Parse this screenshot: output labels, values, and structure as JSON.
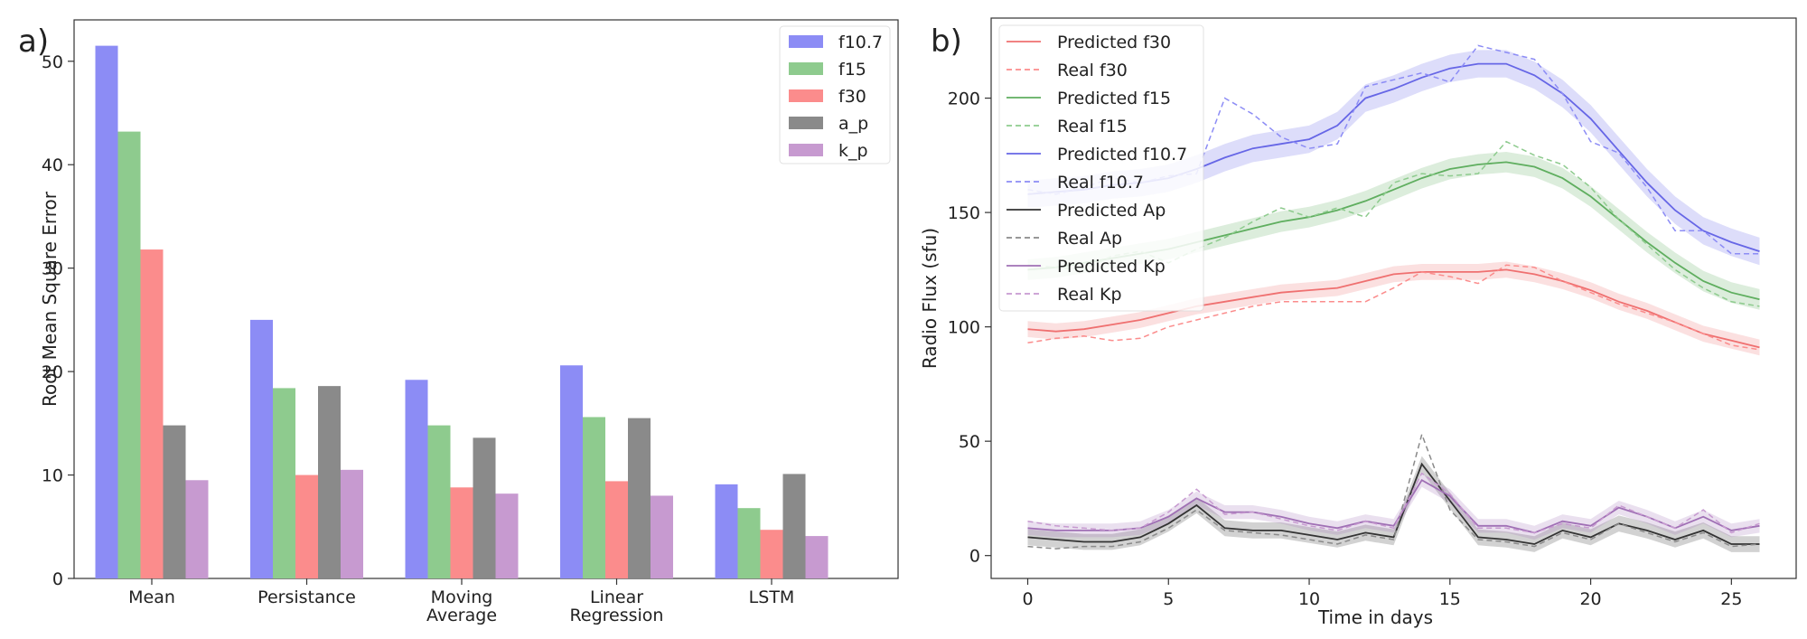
{
  "panel_labels": [
    "a)",
    "b)"
  ],
  "colors": {
    "f10_7": "#8c8cf5",
    "f15": "#8ecb8e",
    "f30": "#fb8c8c",
    "ap": "#8a8a8a",
    "kp": "#c79ad0",
    "pred_f10_7": "#6666e6",
    "pred_f15": "#5fae5f",
    "pred_f30": "#ef7070",
    "pred_ap": "#333333",
    "pred_kp": "#a070b5"
  },
  "chart_data": [
    {
      "type": "bar",
      "panel": "a)",
      "categories": [
        "Mean",
        "Persistance",
        "Moving Average",
        "Linear Regression",
        "LSTM"
      ],
      "series": [
        {
          "name": "f10.7",
          "values": [
            51.5,
            25.0,
            19.2,
            20.6,
            9.1
          ]
        },
        {
          "name": "f15",
          "values": [
            43.2,
            18.4,
            14.8,
            15.6,
            6.8
          ]
        },
        {
          "name": "f30",
          "values": [
            31.8,
            10.0,
            8.8,
            9.4,
            4.7
          ]
        },
        {
          "name": "a_p",
          "values": [
            14.8,
            18.6,
            13.6,
            15.5,
            10.1
          ]
        },
        {
          "name": "k_p",
          "values": [
            9.5,
            10.5,
            8.2,
            8.0,
            4.1
          ]
        }
      ],
      "xlabel": "",
      "ylabel": "Root Mean Square Error",
      "yticks": [
        0,
        10,
        20,
        30,
        40,
        50
      ],
      "ylim": [
        0,
        54
      ],
      "legend_position": "top-right",
      "grid": false
    },
    {
      "type": "line",
      "panel": "b)",
      "x": [
        0,
        1,
        2,
        3,
        4,
        5,
        6,
        7,
        8,
        9,
        10,
        11,
        12,
        13,
        14,
        15,
        16,
        17,
        18,
        19,
        20,
        21,
        22,
        23,
        24,
        25,
        26
      ],
      "series": [
        {
          "name": "Predicted f30",
          "style": "solid",
          "values": [
            99,
            98,
            99,
            101,
            103,
            106,
            109,
            111,
            113,
            115,
            116,
            117,
            120,
            123,
            124,
            124,
            124,
            125,
            123,
            120,
            116,
            111,
            107,
            102,
            97,
            94,
            91
          ]
        },
        {
          "name": "Real f30",
          "style": "dashed",
          "values": [
            93,
            95,
            96,
            94,
            95,
            100,
            103,
            106,
            109,
            111,
            111,
            111,
            111,
            117,
            124,
            122,
            119,
            127,
            126,
            120,
            115,
            110,
            106,
            102,
            97,
            92,
            90
          ]
        },
        {
          "name": "Predicted f15",
          "style": "solid",
          "values": [
            125,
            126,
            128,
            130,
            132,
            134,
            137,
            140,
            143,
            146,
            148,
            151,
            155,
            160,
            165,
            169,
            171,
            172,
            170,
            165,
            157,
            147,
            137,
            128,
            120,
            115,
            112
          ]
        },
        {
          "name": "Real f15",
          "style": "dashed",
          "values": [
            127,
            126,
            125,
            131,
            133,
            128,
            134,
            139,
            146,
            152,
            148,
            152,
            148,
            163,
            167,
            166,
            167,
            181,
            175,
            171,
            161,
            147,
            136,
            125,
            117,
            111,
            109
          ]
        },
        {
          "name": "Predicted f10.7",
          "style": "solid",
          "values": [
            158,
            159,
            160,
            162,
            163,
            165,
            169,
            174,
            178,
            180,
            182,
            188,
            200,
            204,
            209,
            213,
            215,
            215,
            210,
            202,
            191,
            177,
            163,
            151,
            142,
            137,
            133
          ]
        },
        {
          "name": "Real f10.7",
          "style": "dashed",
          "values": [
            160,
            158,
            161,
            165,
            163,
            166,
            167,
            200,
            193,
            183,
            178,
            180,
            205,
            208,
            211,
            207,
            223,
            220,
            217,
            202,
            181,
            176,
            161,
            142,
            142,
            132,
            132
          ]
        },
        {
          "name": "Predicted Ap",
          "style": "solid",
          "values": [
            8,
            7,
            6,
            6,
            8,
            14,
            22,
            12,
            11,
            11,
            9,
            7,
            10,
            8,
            40,
            24,
            8,
            7,
            5,
            11,
            8,
            14,
            11,
            7,
            11,
            5,
            5
          ]
        },
        {
          "name": "Real Ap",
          "style": "dashed",
          "values": [
            4,
            3,
            4,
            4,
            6,
            12,
            20,
            11,
            10,
            9,
            7,
            5,
            9,
            7,
            53,
            20,
            7,
            6,
            4,
            10,
            7,
            14,
            10,
            6,
            10,
            4,
            5
          ]
        },
        {
          "name": "Predicted Kp",
          "style": "solid",
          "values": [
            12,
            11,
            11,
            11,
            12,
            17,
            25,
            19,
            19,
            17,
            14,
            12,
            15,
            13,
            33,
            26,
            13,
            13,
            10,
            15,
            13,
            21,
            17,
            12,
            17,
            11,
            13
          ]
        },
        {
          "name": "Real Kp",
          "style": "dashed",
          "values": [
            15,
            13,
            12,
            11,
            12,
            19,
            29,
            18,
            19,
            16,
            13,
            11,
            15,
            12,
            36,
            27,
            12,
            12,
            10,
            14,
            12,
            22,
            17,
            12,
            20,
            10,
            14
          ]
        }
      ],
      "xlabel": "Time in days",
      "ylabel": "Radio Flux (sfu)",
      "xticks": [
        0,
        5,
        10,
        15,
        20,
        25
      ],
      "yticks": [
        0,
        50,
        100,
        150,
        200
      ],
      "xlim": [
        -1.3,
        27.3
      ],
      "ylim": [
        -10,
        235
      ],
      "legend_position": "top-left",
      "grid": false
    }
  ]
}
